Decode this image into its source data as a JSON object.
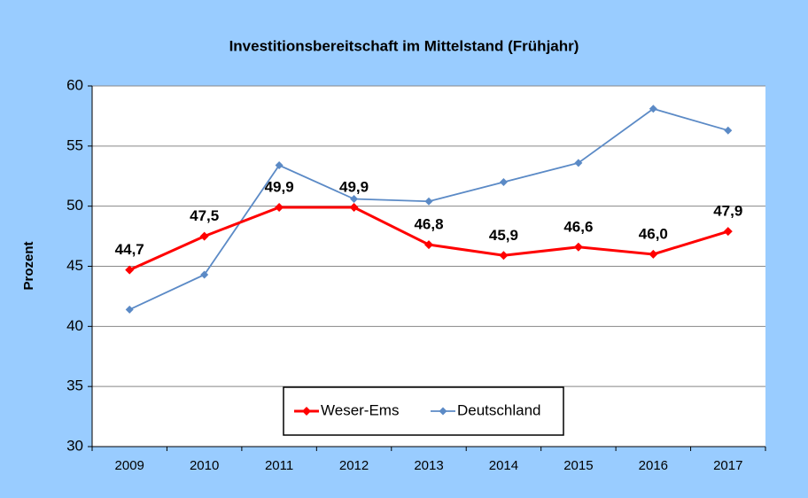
{
  "chart_data": {
    "type": "line",
    "title": "Investitionsbereitschaft im Mittelstand (Frühjahr)",
    "y_label": "Prozent",
    "categories": [
      "2009",
      "2010",
      "2011",
      "2012",
      "2013",
      "2014",
      "2015",
      "2016",
      "2017"
    ],
    "series": [
      {
        "name": "Weser-Ems",
        "color": "#ff0000",
        "values": [
          44.7,
          47.5,
          49.9,
          49.9,
          46.8,
          45.9,
          46.6,
          46.0,
          47.9
        ],
        "value_labels": [
          "44,7",
          "47,5",
          "49,9",
          "49,9",
          "46,8",
          "45,9",
          "46,6",
          "46,0",
          "47,9"
        ]
      },
      {
        "name": "Deutschland",
        "color": "#5b8ac6",
        "values": [
          41.4,
          44.3,
          53.4,
          50.6,
          50.4,
          52.0,
          53.6,
          58.1,
          56.3
        ]
      }
    ],
    "ylim": [
      30,
      60
    ],
    "yticks": [
      30,
      35,
      40,
      45,
      50,
      55,
      60
    ],
    "grid": true
  }
}
